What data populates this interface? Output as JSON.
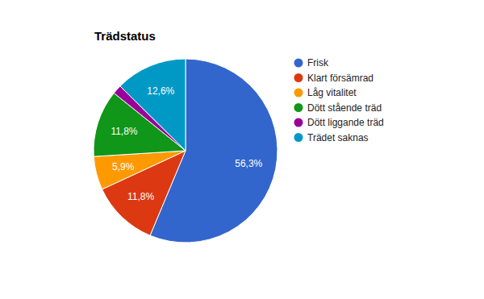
{
  "chart_data": {
    "type": "pie",
    "title": "Trädstatus",
    "categories": [
      "Frisk",
      "Klart försämrad",
      "Låg vitalitet",
      "Dött stående träd",
      "Dött liggande träd",
      "Trädet saknas"
    ],
    "values": [
      56.3,
      11.8,
      5.9,
      11.8,
      1.6,
      12.6
    ],
    "value_labels": [
      "56,3%",
      "11,8%",
      "5,9%",
      "11,8%",
      null,
      "12,6%"
    ],
    "colors": [
      "#3366cc",
      "#dc3912",
      "#ff9900",
      "#109618",
      "#990099",
      "#0099c6"
    ],
    "data_labels": true,
    "legend": "right"
  }
}
